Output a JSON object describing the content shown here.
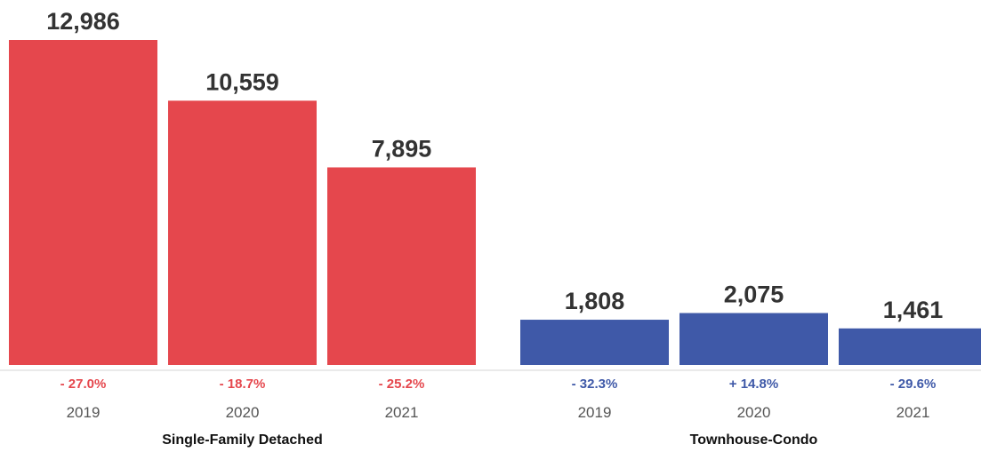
{
  "chart_data": {
    "type": "bar",
    "ylim": [
      0,
      12986
    ],
    "groups": [
      {
        "name": "Single-Family Detached",
        "color": "#e5474d",
        "categories": [
          "2019",
          "2020",
          "2021"
        ],
        "values": [
          12986,
          10559,
          7895
        ],
        "value_labels": [
          "12,986",
          "10,559",
          "7,895"
        ],
        "changes": [
          "- 27.0%",
          "- 18.7%",
          "- 25.2%"
        ]
      },
      {
        "name": "Townhouse-Condo",
        "color": "#3f59a8",
        "categories": [
          "2019",
          "2020",
          "2021"
        ],
        "values": [
          1808,
          2075,
          1461
        ],
        "value_labels": [
          "1,808",
          "2,075",
          "1,461"
        ],
        "changes": [
          "- 32.3%",
          "+ 14.8%",
          "- 29.6%"
        ]
      }
    ]
  }
}
